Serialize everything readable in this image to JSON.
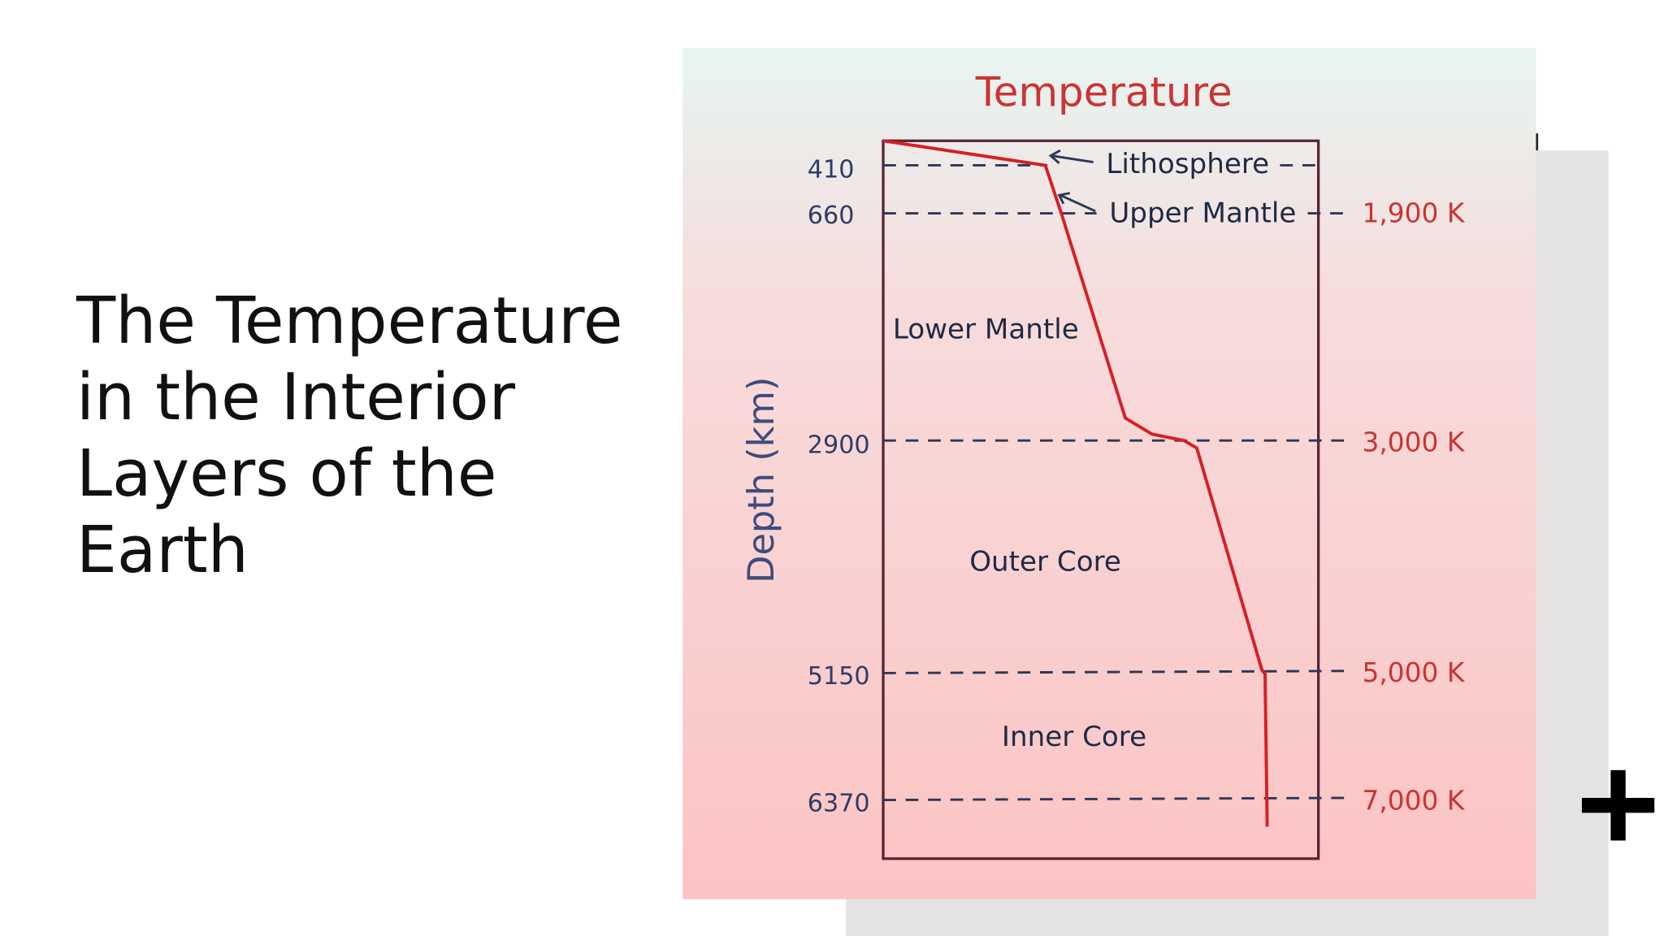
{
  "slide": {
    "title": "The Temperature in the Interior Layers of the Earth"
  },
  "diagram": {
    "title": "Temperature",
    "axis_label": "Depth (km)",
    "depths": [
      "410",
      "660",
      "2900",
      "5150",
      "6370"
    ],
    "layers": [
      "Lithosphere",
      "Upper Mantle",
      "Lower Mantle",
      "Outer Core",
      "Inner Core"
    ],
    "temperatures": [
      "1,900 K",
      "3,000 K",
      "5,000 K",
      "7,000 K"
    ]
  }
}
